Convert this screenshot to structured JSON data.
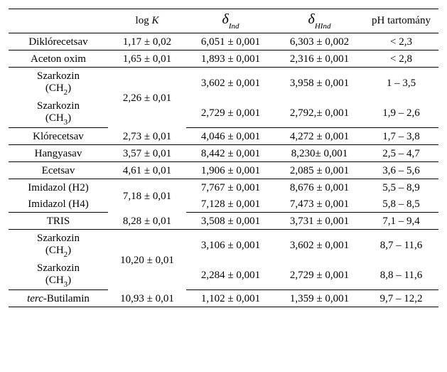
{
  "headers": {
    "name": "",
    "logK": "log K",
    "logK_prefix": "log",
    "logK_K": "K",
    "dInd_symbol": "δ",
    "dInd_sub": "Ind",
    "dHInd_symbol": "δ",
    "dHInd_sub": "HInd",
    "ph": "pH tartomány"
  },
  "rows": {
    "dichlor": {
      "name": "Diklórecetsav",
      "logK": "1,17 ± 0,02",
      "dInd": "6,051 ± 0,001",
      "dHInd": "6,303 ± 0,002",
      "ph": "< 2,3"
    },
    "acetonoxim": {
      "name": "Aceton oxim",
      "logK": "1,65 ± 0,01",
      "dInd": "1,893 ± 0,001",
      "dHInd": "2,316 ± 0,001",
      "ph": "< 2,8"
    },
    "sark1_ch2": {
      "name_top": "Szarkozin",
      "name_sub": "(CH",
      "name_sub_n": "2",
      "name_sub_close": ")",
      "dInd": "3,602 ± 0,001",
      "dHInd": "3,958 ± 0,001",
      "ph": "1 – 3,5"
    },
    "sark1_logK": {
      "logK": "2,26 ± 0,01"
    },
    "sark1_ch3": {
      "name_top": "Szarkozin",
      "name_sub": "(CH",
      "name_sub_n": "3",
      "name_sub_close": ")",
      "dInd": "2,729 ± 0,001",
      "dHInd": "2,792,± 0,001",
      "ph": "1,9 – 2,6"
    },
    "klor": {
      "name": "Klórecetsav",
      "logK": "2,73 ± 0,01",
      "dInd": "4,046 ± 0,001",
      "dHInd": "4,272 ± 0,001",
      "ph": "1,7 – 3,8"
    },
    "hangy": {
      "name": "Hangyasav",
      "logK": "3,57 ± 0,01",
      "dInd": "8,442 ± 0,001",
      "dHInd": "8,230± 0,001",
      "ph": "2,5 – 4,7"
    },
    "ecet": {
      "name": "Ecetsav",
      "logK": "4,61 ± 0,01",
      "dInd": "1,906 ± 0,001",
      "dHInd": "2,085 ± 0,001",
      "ph": "3,6 – 5,6"
    },
    "imid_h2": {
      "name": "Imidazol (H2)",
      "dInd": "7,767 ± 0,001",
      "dHInd": "8,676 ± 0,001",
      "ph": "5,5 – 8,9"
    },
    "imid_logK": {
      "logK": "7,18 ± 0,01"
    },
    "imid_h4": {
      "name": "Imidazol (H4)",
      "dInd": "7,128 ± 0,001",
      "dHInd": "7,473 ± 0,001",
      "ph": "5,8 – 8,5"
    },
    "tris": {
      "name": "TRIS",
      "logK": "8,28 ± 0,01",
      "dInd": "3,508 ± 0,001",
      "dHInd": "3,731 ± 0,001",
      "ph": "7,1 – 9,4"
    },
    "sark2_ch2": {
      "name_top": "Szarkozin",
      "name_sub": "(CH",
      "name_sub_n": "2",
      "name_sub_close": ")",
      "dInd": "3,106 ± 0,001",
      "dHInd": "3,602 ± 0,001",
      "ph": "8,7 – 11,6"
    },
    "sark2_logK": {
      "logK": "10,20 ± 0,01"
    },
    "sark2_ch3": {
      "name_top": "Szarkozin",
      "name_sub": "(CH",
      "name_sub_n": "3",
      "name_sub_close": ")",
      "dInd": "2,284 ± 0,001",
      "dHInd": "2,729 ± 0,001",
      "ph": "8,8 – 11,6"
    },
    "tercbut": {
      "name_prefix": "terc",
      "name_rest": "-Butilamin",
      "logK": "10,93 ± 0,01",
      "dInd": "1,102 ± 0,001",
      "dHInd": "1,359 ± 0,001",
      "ph": "9,7 – 12,2"
    }
  }
}
